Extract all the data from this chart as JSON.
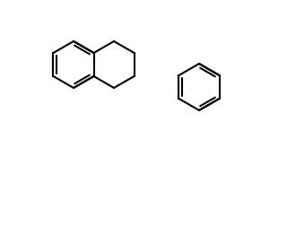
{
  "bg_color": "#ffffff",
  "line_color": "#000000",
  "line_width": 1.5,
  "figsize": [
    3.2,
    2.52
  ],
  "dpi": 100
}
